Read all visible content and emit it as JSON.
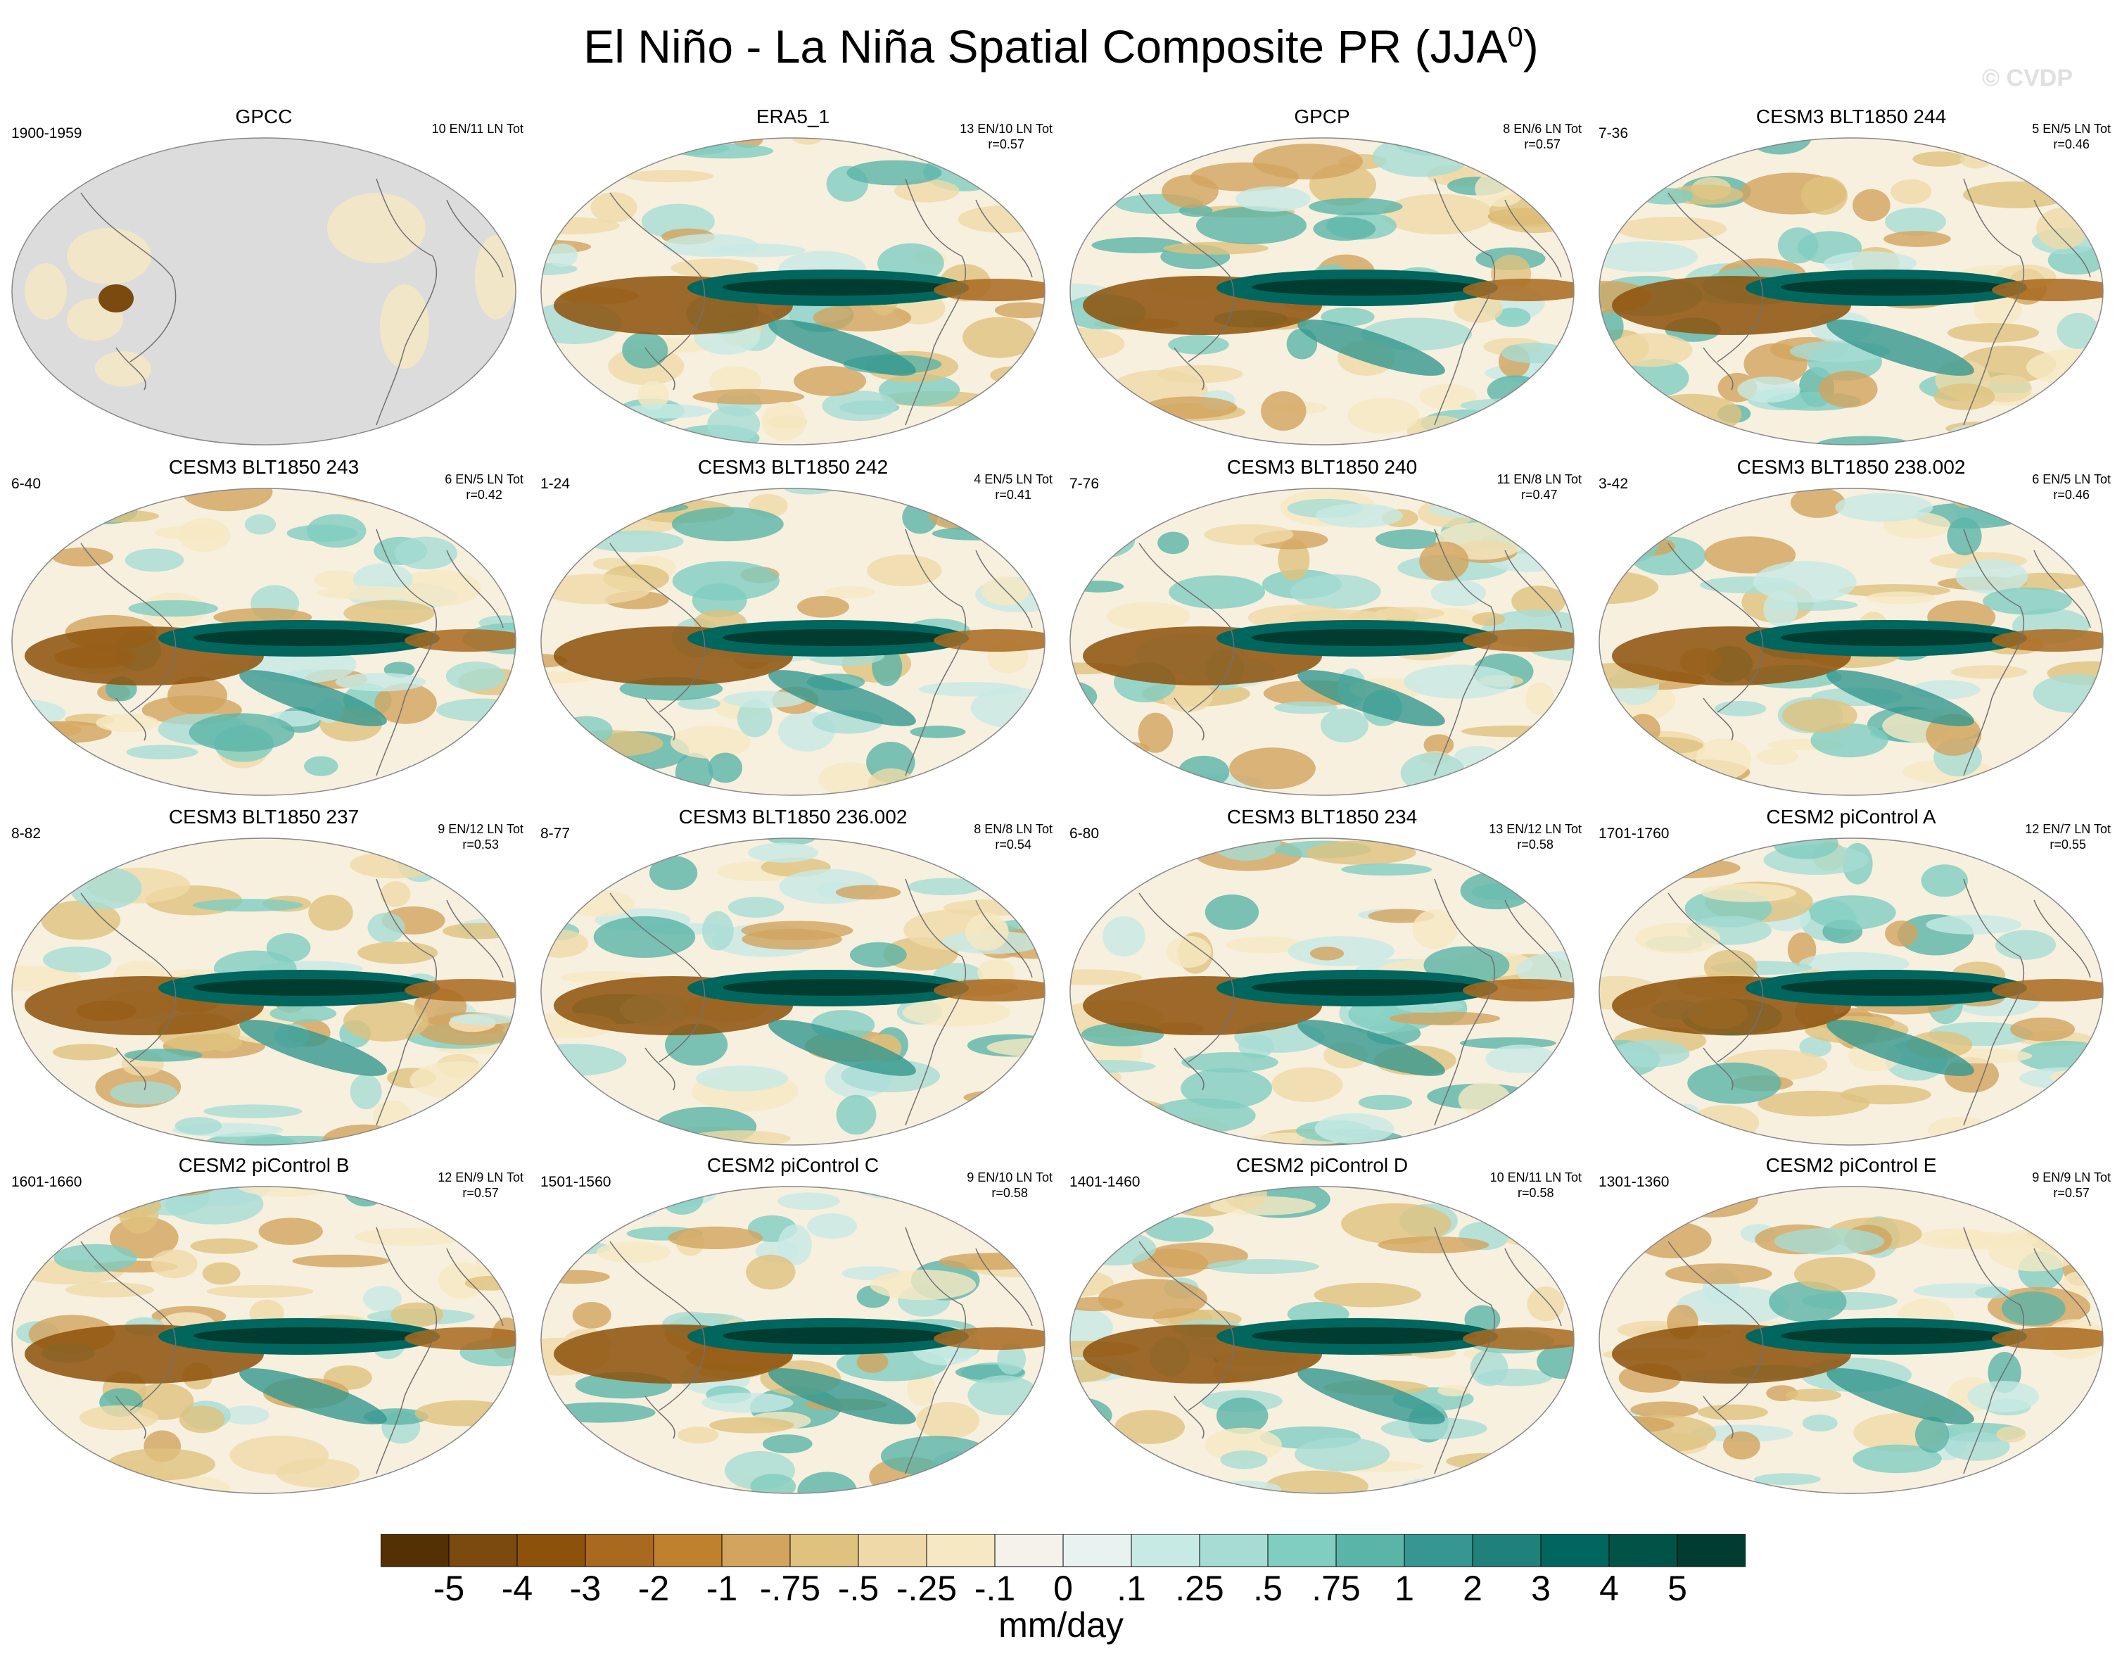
{
  "title": "El Niño - La Niña Spatial Composite PR (JJA",
  "title_sup": "0",
  "title_end": ")",
  "watermark": "© CVDP",
  "panels": [
    {
      "title": "GPCC",
      "left": "1900-1959",
      "right1": "10 EN/11 LN Tot",
      "right2": "",
      "land_only": true
    },
    {
      "title": "ERA5_1",
      "left": "",
      "right1": "13 EN/10 LN Tot",
      "right2": "r=0.57"
    },
    {
      "title": "GPCP",
      "left": "",
      "right1": "8 EN/6 LN Tot",
      "right2": "r=0.57"
    },
    {
      "title": "CESM3 BLT1850 244",
      "left": "7-36",
      "right1": "5 EN/5 LN Tot",
      "right2": "r=0.46"
    },
    {
      "title": "CESM3 BLT1850 243",
      "left": "6-40",
      "right1": "6 EN/5 LN Tot",
      "right2": "r=0.42"
    },
    {
      "title": "CESM3 BLT1850 242",
      "left": "1-24",
      "right1": "4 EN/5 LN Tot",
      "right2": "r=0.41"
    },
    {
      "title": "CESM3 BLT1850 240",
      "left": "7-76",
      "right1": "11 EN/8 LN Tot",
      "right2": "r=0.47"
    },
    {
      "title": "CESM3 BLT1850 238.002",
      "left": "3-42",
      "right1": "6 EN/5 LN Tot",
      "right2": "r=0.46"
    },
    {
      "title": "CESM3 BLT1850 237",
      "left": "8-82",
      "right1": "9 EN/12 LN Tot",
      "right2": "r=0.53"
    },
    {
      "title": "CESM3 BLT1850 236.002",
      "left": "8-77",
      "right1": "8 EN/8 LN Tot",
      "right2": "r=0.54"
    },
    {
      "title": "CESM3 BLT1850 234",
      "left": "6-80",
      "right1": "13 EN/12 LN Tot",
      "right2": "r=0.58"
    },
    {
      "title": "CESM2 piControl A",
      "left": "1701-1760",
      "right1": "12 EN/7 LN Tot",
      "right2": "r=0.55"
    },
    {
      "title": "CESM2 piControl B",
      "left": "1601-1660",
      "right1": "12 EN/9 LN Tot",
      "right2": "r=0.57"
    },
    {
      "title": "CESM2 piControl C",
      "left": "1501-1560",
      "right1": "9 EN/10 LN Tot",
      "right2": "r=0.58"
    },
    {
      "title": "CESM2 piControl D",
      "left": "1401-1460",
      "right1": "10 EN/11 LN Tot",
      "right2": "r=0.58"
    },
    {
      "title": "CESM2 piControl E",
      "left": "1301-1360",
      "right1": "9 EN/9 LN Tot",
      "right2": "r=0.57"
    }
  ],
  "colorbar": {
    "colors": [
      "#543005",
      "#7a4a0e",
      "#8c510a",
      "#a9691f",
      "#bf812d",
      "#d2a45e",
      "#dfc27d",
      "#efd9a8",
      "#f6e8c3",
      "#f5f2ec",
      "#e8f2f0",
      "#c7eae5",
      "#a6dcd4",
      "#80cdc1",
      "#5ab4a8",
      "#35978f",
      "#1f8179",
      "#01665e",
      "#015247",
      "#003c30"
    ],
    "labels": [
      "-5",
      "-4",
      "-3",
      "-2",
      "-1",
      "-.75",
      "-.5",
      "-.25",
      "-.1",
      "0",
      ".1",
      ".25",
      ".5",
      ".75",
      "1",
      "2",
      "3",
      "4",
      "5"
    ],
    "units": "mm/day"
  }
}
